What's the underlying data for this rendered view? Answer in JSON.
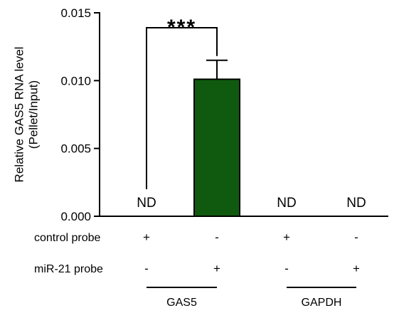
{
  "chart_data": {
    "type": "bar",
    "title": "",
    "ylabel": [
      "Relative GAS5 RNA level",
      "(Pellet/Input)"
    ],
    "ylim": [
      0,
      0.015
    ],
    "yticks": [
      "0.000",
      "0.005",
      "0.010",
      "0.015"
    ],
    "bar_color": "#0f5a0f",
    "bars": [
      {
        "value": 0,
        "label": "ND"
      },
      {
        "value": 0.0101,
        "error": 0.0014
      },
      {
        "value": 0,
        "label": "ND"
      },
      {
        "value": 0,
        "label": "ND"
      }
    ],
    "conditions": [
      {
        "label": "control probe",
        "signs": [
          "+",
          "-",
          "+",
          "-"
        ]
      },
      {
        "label": "miR-21 probe",
        "signs": [
          "-",
          "+",
          "-",
          "+"
        ]
      }
    ],
    "groups": [
      {
        "label": "GAS5"
      },
      {
        "label": "GAPDH"
      }
    ],
    "significance": "***"
  }
}
